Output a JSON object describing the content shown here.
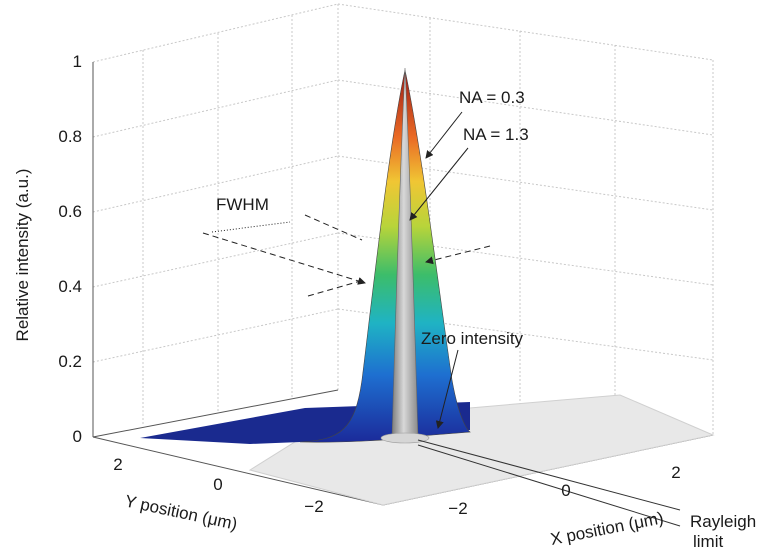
{
  "chart_data": {
    "type": "surface",
    "title": "",
    "xlabel": "X position (μm)",
    "ylabel": "Y position (μm)",
    "zlabel": "Relative intensity (a.u.)",
    "x_ticks": [
      "−2",
      "0",
      "2"
    ],
    "y_ticks": [
      "2",
      "0",
      "−2"
    ],
    "z_ticks": [
      "0",
      "0.2",
      "0.4",
      "0.6",
      "0.8",
      "1"
    ],
    "zlim": [
      0,
      1
    ],
    "grid": true,
    "series": [
      {
        "name": "NA = 0.3",
        "peak": 1.0,
        "colormap": "jet"
      },
      {
        "name": "NA = 1.3",
        "peak": 1.0,
        "color": "#b8b8b8"
      }
    ],
    "annotations": [
      {
        "text": "NA = 0.3"
      },
      {
        "text": "NA = 1.3"
      },
      {
        "text": "FWHM"
      },
      {
        "text": "Zero intensity"
      },
      {
        "text": "Rayleigh"
      },
      {
        "text": "limit"
      }
    ],
    "colors": {
      "base_wide": "#1a2a8f",
      "base_narrow": "#e8e8e8",
      "narrow_peak": "#b4b4b4",
      "grid": "#c8c8c8"
    }
  }
}
